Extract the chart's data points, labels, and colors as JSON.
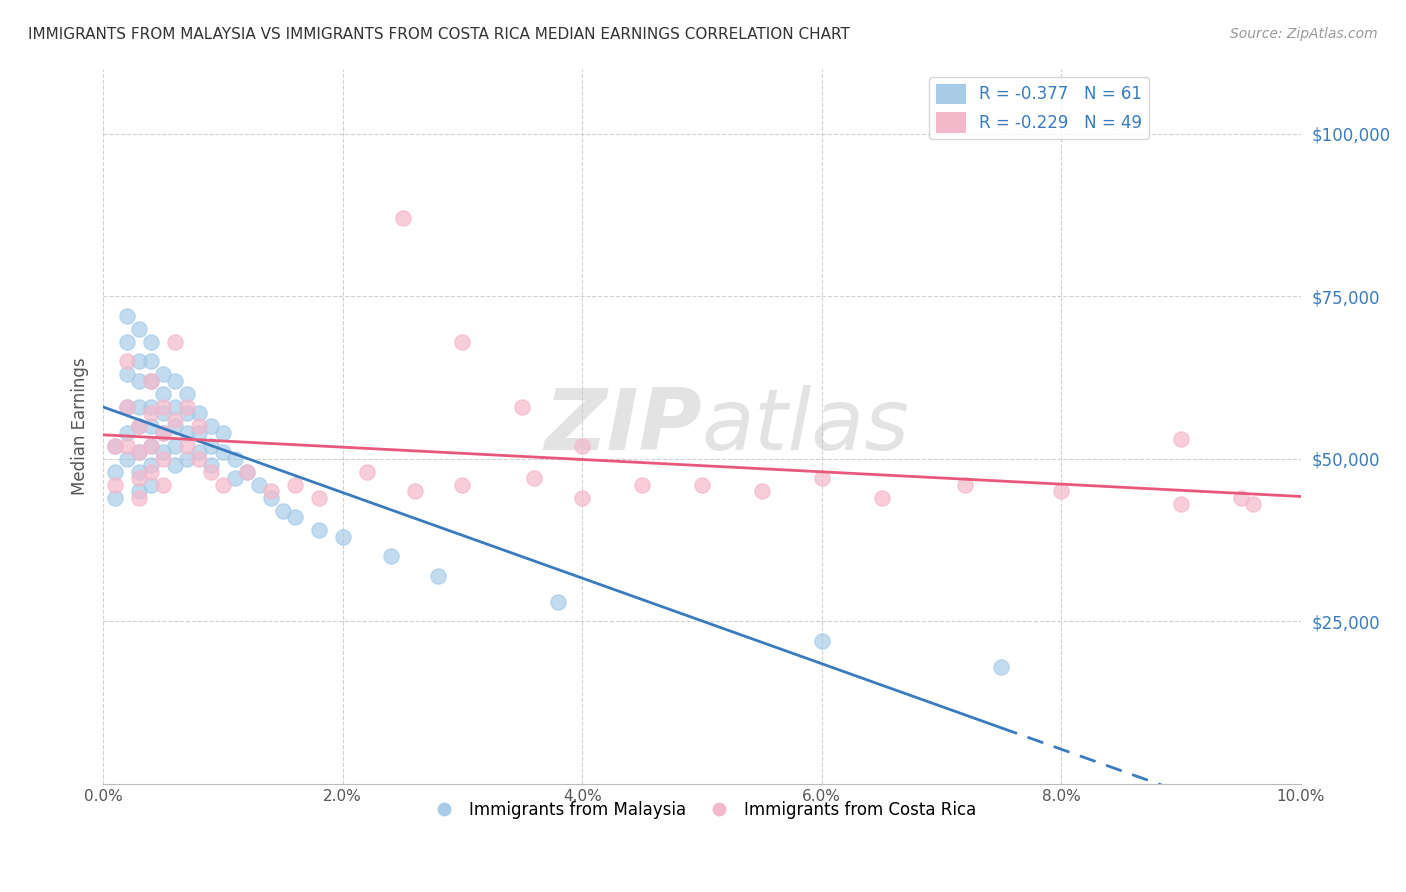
{
  "title": "IMMIGRANTS FROM MALAYSIA VS IMMIGRANTS FROM COSTA RICA MEDIAN EARNINGS CORRELATION CHART",
  "source": "Source: ZipAtlas.com",
  "ylabel": "Median Earnings",
  "xlim": [
    0.0,
    0.1
  ],
  "ylim": [
    0,
    110000
  ],
  "yticks": [
    0,
    25000,
    50000,
    75000,
    100000
  ],
  "ytick_labels": [
    "",
    "$25,000",
    "$50,000",
    "$75,000",
    "$100,000"
  ],
  "xticks": [
    0.0,
    0.02,
    0.04,
    0.06,
    0.08,
    0.1
  ],
  "xtick_labels": [
    "0.0%",
    "2.0%",
    "4.0%",
    "6.0%",
    "8.0%",
    "10.0%"
  ],
  "malaysia_color": "#a8cce8",
  "costa_rica_color": "#f4b8cb",
  "malaysia_line_color": "#3a7bbf",
  "costa_rica_line_color": "#e8587a",
  "malaysia_R": -0.377,
  "malaysia_N": 61,
  "costa_rica_R": -0.229,
  "costa_rica_N": 49,
  "legend_label_malaysia": "Immigrants from Malaysia",
  "legend_label_costa_rica": "Immigrants from Costa Rica",
  "watermark_zip": "ZIP",
  "watermark_atlas": "atlas",
  "background_color": "#ffffff",
  "grid_color": "#d0d0d0",
  "ytick_color": "#3a7bbf",
  "xtick_color": "#555555",
  "malaysia_x": [
    0.001,
    0.001,
    0.001,
    0.002,
    0.002,
    0.002,
    0.002,
    0.002,
    0.002,
    0.003,
    0.003,
    0.003,
    0.003,
    0.003,
    0.003,
    0.003,
    0.003,
    0.004,
    0.004,
    0.004,
    0.004,
    0.004,
    0.004,
    0.004,
    0.004,
    0.005,
    0.005,
    0.005,
    0.005,
    0.005,
    0.006,
    0.006,
    0.006,
    0.006,
    0.006,
    0.007,
    0.007,
    0.007,
    0.007,
    0.008,
    0.008,
    0.008,
    0.009,
    0.009,
    0.009,
    0.01,
    0.01,
    0.011,
    0.011,
    0.012,
    0.013,
    0.014,
    0.015,
    0.016,
    0.018,
    0.02,
    0.024,
    0.028,
    0.038,
    0.06,
    0.075
  ],
  "malaysia_y": [
    52000,
    48000,
    44000,
    72000,
    68000,
    63000,
    58000,
    54000,
    50000,
    70000,
    65000,
    62000,
    58000,
    55000,
    51000,
    48000,
    45000,
    68000,
    65000,
    62000,
    58000,
    55000,
    52000,
    49000,
    46000,
    63000,
    60000,
    57000,
    54000,
    51000,
    62000,
    58000,
    55000,
    52000,
    49000,
    60000,
    57000,
    54000,
    50000,
    57000,
    54000,
    51000,
    55000,
    52000,
    49000,
    54000,
    51000,
    50000,
    47000,
    48000,
    46000,
    44000,
    42000,
    41000,
    39000,
    38000,
    35000,
    32000,
    28000,
    22000,
    18000
  ],
  "costa_rica_x": [
    0.001,
    0.001,
    0.002,
    0.002,
    0.002,
    0.003,
    0.003,
    0.003,
    0.003,
    0.004,
    0.004,
    0.004,
    0.004,
    0.005,
    0.005,
    0.005,
    0.005,
    0.006,
    0.006,
    0.007,
    0.007,
    0.008,
    0.008,
    0.009,
    0.01,
    0.012,
    0.014,
    0.016,
    0.018,
    0.022,
    0.026,
    0.03,
    0.036,
    0.04,
    0.045,
    0.05,
    0.055,
    0.06,
    0.065,
    0.072,
    0.08,
    0.09,
    0.096,
    0.025,
    0.03,
    0.035,
    0.04,
    0.09,
    0.095
  ],
  "costa_rica_y": [
    52000,
    46000,
    65000,
    58000,
    52000,
    55000,
    51000,
    47000,
    44000,
    62000,
    57000,
    52000,
    48000,
    58000,
    54000,
    50000,
    46000,
    68000,
    56000,
    58000,
    52000,
    55000,
    50000,
    48000,
    46000,
    48000,
    45000,
    46000,
    44000,
    48000,
    45000,
    46000,
    47000,
    44000,
    46000,
    46000,
    45000,
    47000,
    44000,
    46000,
    45000,
    43000,
    43000,
    87000,
    68000,
    58000,
    52000,
    53000,
    44000
  ]
}
